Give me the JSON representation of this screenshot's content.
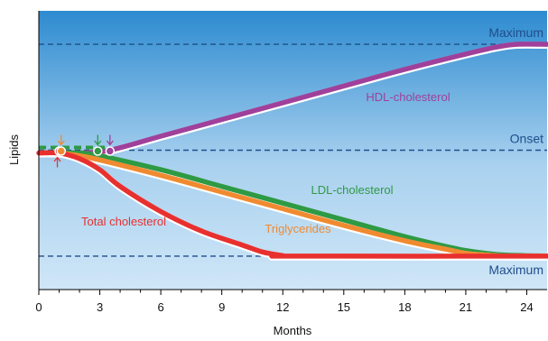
{
  "chart_data": {
    "type": "line",
    "xlabel": "Months",
    "ylabel": "Lipids",
    "xlim": [
      0,
      25
    ],
    "ylim": [
      0,
      100
    ],
    "x_ticks": [
      0,
      3,
      6,
      9,
      12,
      15,
      18,
      21,
      24
    ],
    "grid": false,
    "reference_lines": [
      {
        "label": "Maximum",
        "y": 88
      },
      {
        "label": "Onset",
        "y": 50
      },
      {
        "label": "Maximum",
        "y": 12
      }
    ],
    "series": [
      {
        "name": "HDL-cholesterol",
        "color": "#a0409a",
        "points": [
          [
            0,
            49
          ],
          [
            1,
            49
          ],
          [
            2,
            49
          ],
          [
            3.5,
            50
          ],
          [
            6,
            55
          ],
          [
            9,
            61
          ],
          [
            12,
            67
          ],
          [
            15,
            73
          ],
          [
            18,
            79
          ],
          [
            21,
            84.5
          ],
          [
            22.5,
            87
          ],
          [
            23.5,
            88
          ],
          [
            25,
            88
          ]
        ]
      },
      {
        "name": "LDL-cholesterol",
        "color": "#2e9a44",
        "points": [
          [
            0,
            49
          ],
          [
            1,
            49
          ],
          [
            2,
            49
          ],
          [
            3,
            48
          ],
          [
            6,
            43
          ],
          [
            9,
            37
          ],
          [
            12,
            31
          ],
          [
            15,
            25
          ],
          [
            18,
            19
          ],
          [
            20,
            15.5
          ],
          [
            21,
            14
          ],
          [
            22,
            13
          ],
          [
            23,
            12.4
          ],
          [
            25,
            12
          ]
        ]
      },
      {
        "name": "Triglycerides",
        "color": "#f08a30",
        "points": [
          [
            0,
            49
          ],
          [
            1,
            49
          ],
          [
            2,
            48
          ],
          [
            3,
            46.5
          ],
          [
            6,
            41
          ],
          [
            9,
            35
          ],
          [
            12,
            29
          ],
          [
            15,
            23
          ],
          [
            18,
            17.5
          ],
          [
            20,
            14.5
          ],
          [
            21,
            13
          ],
          [
            22,
            12.4
          ],
          [
            23,
            12
          ],
          [
            25,
            12
          ]
        ]
      },
      {
        "name": "Total cholesterol",
        "color": "#e8302e",
        "points": [
          [
            0,
            49
          ],
          [
            1,
            49
          ],
          [
            2,
            47
          ],
          [
            3,
            43
          ],
          [
            4,
            37
          ],
          [
            6,
            28
          ],
          [
            8,
            21
          ],
          [
            10,
            16
          ],
          [
            11,
            13.5
          ],
          [
            12,
            12.2
          ],
          [
            12.5,
            12
          ],
          [
            25,
            12
          ]
        ]
      }
    ],
    "onset_markers": [
      {
        "series": "Total cholesterol",
        "x": 1,
        "y": 50,
        "color": "#e8302e"
      },
      {
        "series": "Triglycerides",
        "x": 1.1,
        "y": 50,
        "color": "#f08a30"
      },
      {
        "series": "LDL-cholesterol",
        "x": 2.9,
        "y": 50,
        "color": "#2e9a44"
      },
      {
        "series": "HDL-cholesterol",
        "x": 3.5,
        "y": 50,
        "color": "#a0409a"
      }
    ],
    "reference_line_color": "#1f4e8c",
    "background": {
      "top": "#2d8bd0",
      "bottom": "#cfe6f7"
    }
  }
}
